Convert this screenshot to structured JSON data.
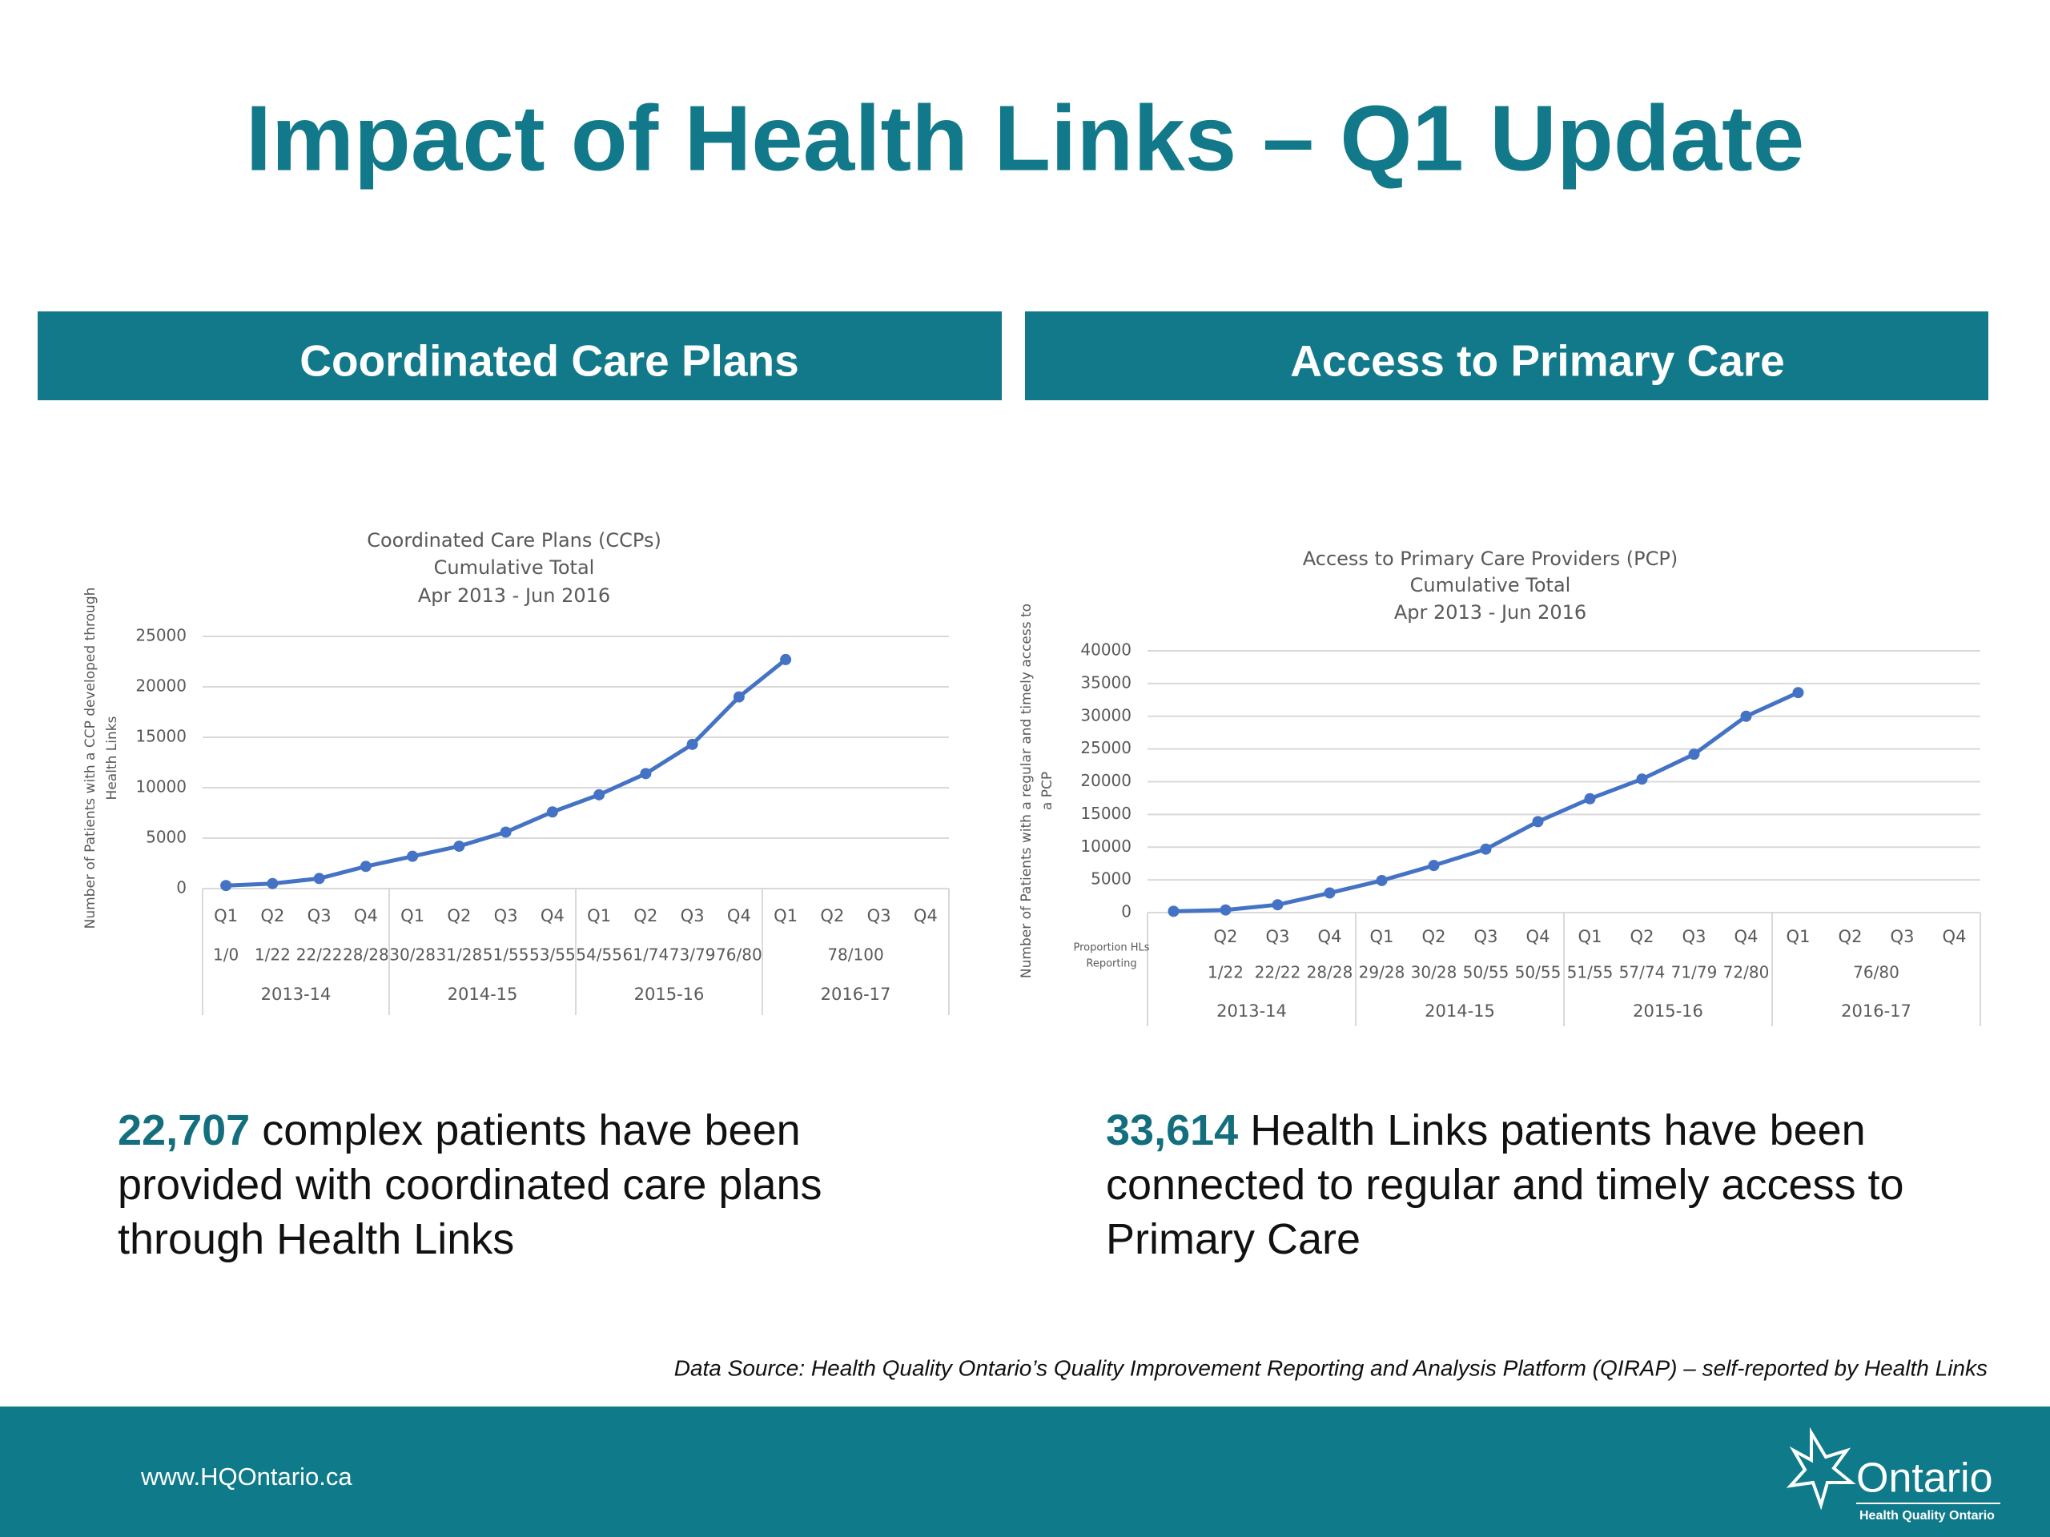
{
  "title": "Impact of Health Links – Q1 Update",
  "panels": [
    {
      "header": "Coordinated Care Plans",
      "highlight": "22,707",
      "text": "complex patients have been provided with coordinated care plans through Health Links"
    },
    {
      "header": "Access to Primary Care",
      "highlight": "33,614",
      "text": "Health Links patients have been connected to regular and timely access to Primary Care"
    }
  ],
  "chart_data": [
    {
      "type": "line",
      "title": [
        "Coordinated Care Plans (CCPs)",
        "Cumulative Total",
        "Apr 2013 - Jun 2016"
      ],
      "y_label": [
        "Number of Patients with a CCP developed through",
        "Health Links"
      ],
      "categories": [
        "Q1",
        "Q2",
        "Q3",
        "Q4",
        "Q1",
        "Q2",
        "Q3",
        "Q4",
        "Q1",
        "Q2",
        "Q3",
        "Q4",
        "Q1",
        "Q2",
        "Q3",
        "Q4"
      ],
      "proportions": [
        "1/0",
        "1/22",
        "22/22",
        "28/28",
        "30/28",
        "31/28",
        "51/55",
        "53/55",
        "54/55",
        "61/74",
        "73/79",
        "76/80",
        "78/100",
        null,
        null,
        null
      ],
      "groups": [
        "2013-14",
        "2014-15",
        "2015-16",
        "2016-17"
      ],
      "series": [
        {
          "color": "#4472c4",
          "values": [
            300,
            500,
            1000,
            2200,
            3200,
            4200,
            5600,
            7600,
            9300,
            11400,
            14300,
            19000,
            22707,
            null,
            null,
            null
          ]
        }
      ],
      "ylim": [
        0,
        25000
      ],
      "yticks": [
        0,
        5000,
        10000,
        15000,
        20000,
        25000
      ],
      "grid": true
    },
    {
      "type": "line",
      "title": [
        "Access to Primary Care Providers (PCP)",
        "Cumulative Total",
        "Apr 2013 - Jun 2016"
      ],
      "y_label": [
        "Number of Patients with a regular and timely access to",
        "a PCP"
      ],
      "proportion_label": [
        "Proportion HLs",
        "Reporting"
      ],
      "categories": [
        null,
        "Q2",
        "Q3",
        "Q4",
        "Q1",
        "Q2",
        "Q3",
        "Q4",
        "Q1",
        "Q2",
        "Q3",
        "Q4",
        "Q1",
        "Q2",
        "Q3",
        "Q4"
      ],
      "proportions": [
        null,
        "1/22",
        "22/22",
        "28/28",
        "29/28",
        "30/28",
        "50/55",
        "50/55",
        "51/55",
        "57/74",
        "71/79",
        "72/80",
        "76/80",
        null,
        null,
        null
      ],
      "groups": [
        "2013-14",
        "2014-15",
        "2015-16",
        "2016-17"
      ],
      "series": [
        {
          "color": "#4472c4",
          "values": [
            200,
            400,
            1200,
            3000,
            4900,
            7200,
            9700,
            13900,
            17400,
            20400,
            24200,
            30000,
            33614,
            null,
            null,
            null
          ]
        }
      ],
      "ylim": [
        0,
        40000
      ],
      "yticks": [
        0,
        5000,
        10000,
        15000,
        20000,
        25000,
        30000,
        35000,
        40000
      ],
      "grid": true
    }
  ],
  "footnote": "Data Source:  Health Quality Ontario’s Quality Improvement Reporting and Analysis Platform (QIRAP) – self-reported by Health Links",
  "url": "www.HQOntario.ca",
  "logo": {
    "name": "Ontario",
    "subtitle": "Health Quality Ontario"
  }
}
